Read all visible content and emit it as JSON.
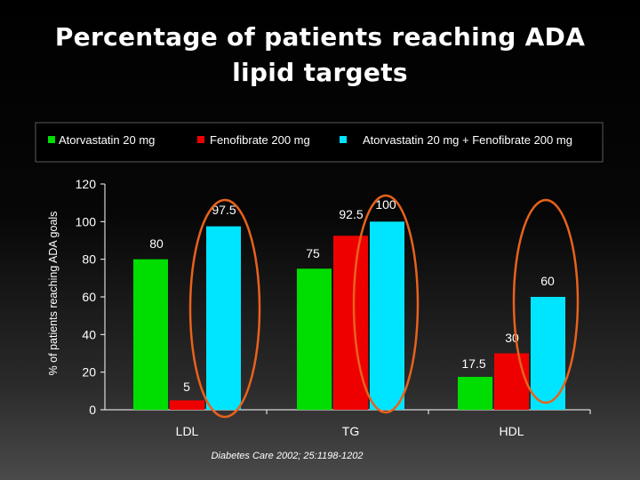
{
  "slide": {
    "title_line1": "Percentage of patients reaching ADA",
    "title_line2": "lipid targets",
    "source": "Diabetes Care 2002; 25:1198-1202"
  },
  "colors": {
    "atorvastatin": "#00dd00",
    "fenofibrate": "#ee0000",
    "combination": "#00e5ff",
    "highlight_ellipse": "#e8621c",
    "axis": "#ffffff"
  },
  "chart_data": {
    "type": "bar",
    "title": "",
    "xlabel": "",
    "ylabel": "% of patients reaching ADA goals",
    "ylim": [
      0,
      120
    ],
    "yticks": [
      0,
      20,
      40,
      60,
      80,
      100,
      120
    ],
    "categories": [
      "LDL",
      "TG",
      "HDL"
    ],
    "series": [
      {
        "name": "Atorvastatin   20 mg",
        "values": [
          80,
          75,
          17.5
        ],
        "labels": [
          "80",
          "75",
          "17.5"
        ]
      },
      {
        "name": "Fenofibrate 200 mg",
        "values": [
          5,
          92.5,
          30
        ],
        "labels": [
          "5",
          "92.5",
          "30"
        ]
      },
      {
        "name": "Atorvastatin 20 mg + Fenofibrate 200 mg",
        "values": [
          97.5,
          100,
          60
        ],
        "labels": [
          "97.5",
          "100",
          "60"
        ]
      }
    ],
    "legend": "top",
    "grid": false,
    "highlighted_series": "Atorvastatin 20 mg + Fenofibrate 200 mg"
  }
}
